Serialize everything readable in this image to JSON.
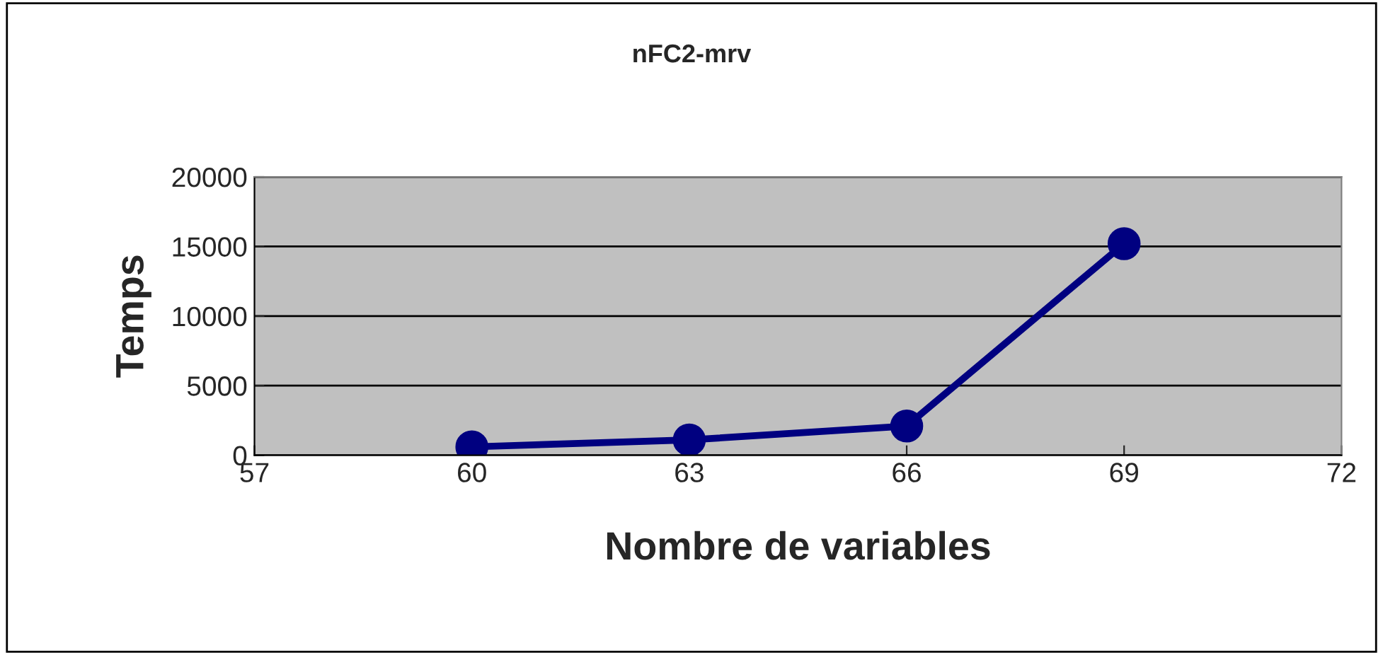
{
  "chart_data": {
    "type": "line",
    "title": "nFC2-mrv",
    "xlabel": "Nombre de variables",
    "ylabel": "Temps",
    "x": [
      60,
      63,
      66,
      69
    ],
    "series": [
      {
        "color": "#000080",
        "values": [
          600,
          1100,
          2100,
          15200
        ]
      }
    ],
    "xlim": [
      57,
      72
    ],
    "xticks": [
      57,
      60,
      63,
      66,
      69,
      72
    ],
    "ylim": [
      0,
      20000
    ],
    "yticks": [
      0,
      5000,
      10000,
      15000,
      20000
    ],
    "grid": "y",
    "marker": "circle",
    "line_style": "solid",
    "legend": false
  }
}
